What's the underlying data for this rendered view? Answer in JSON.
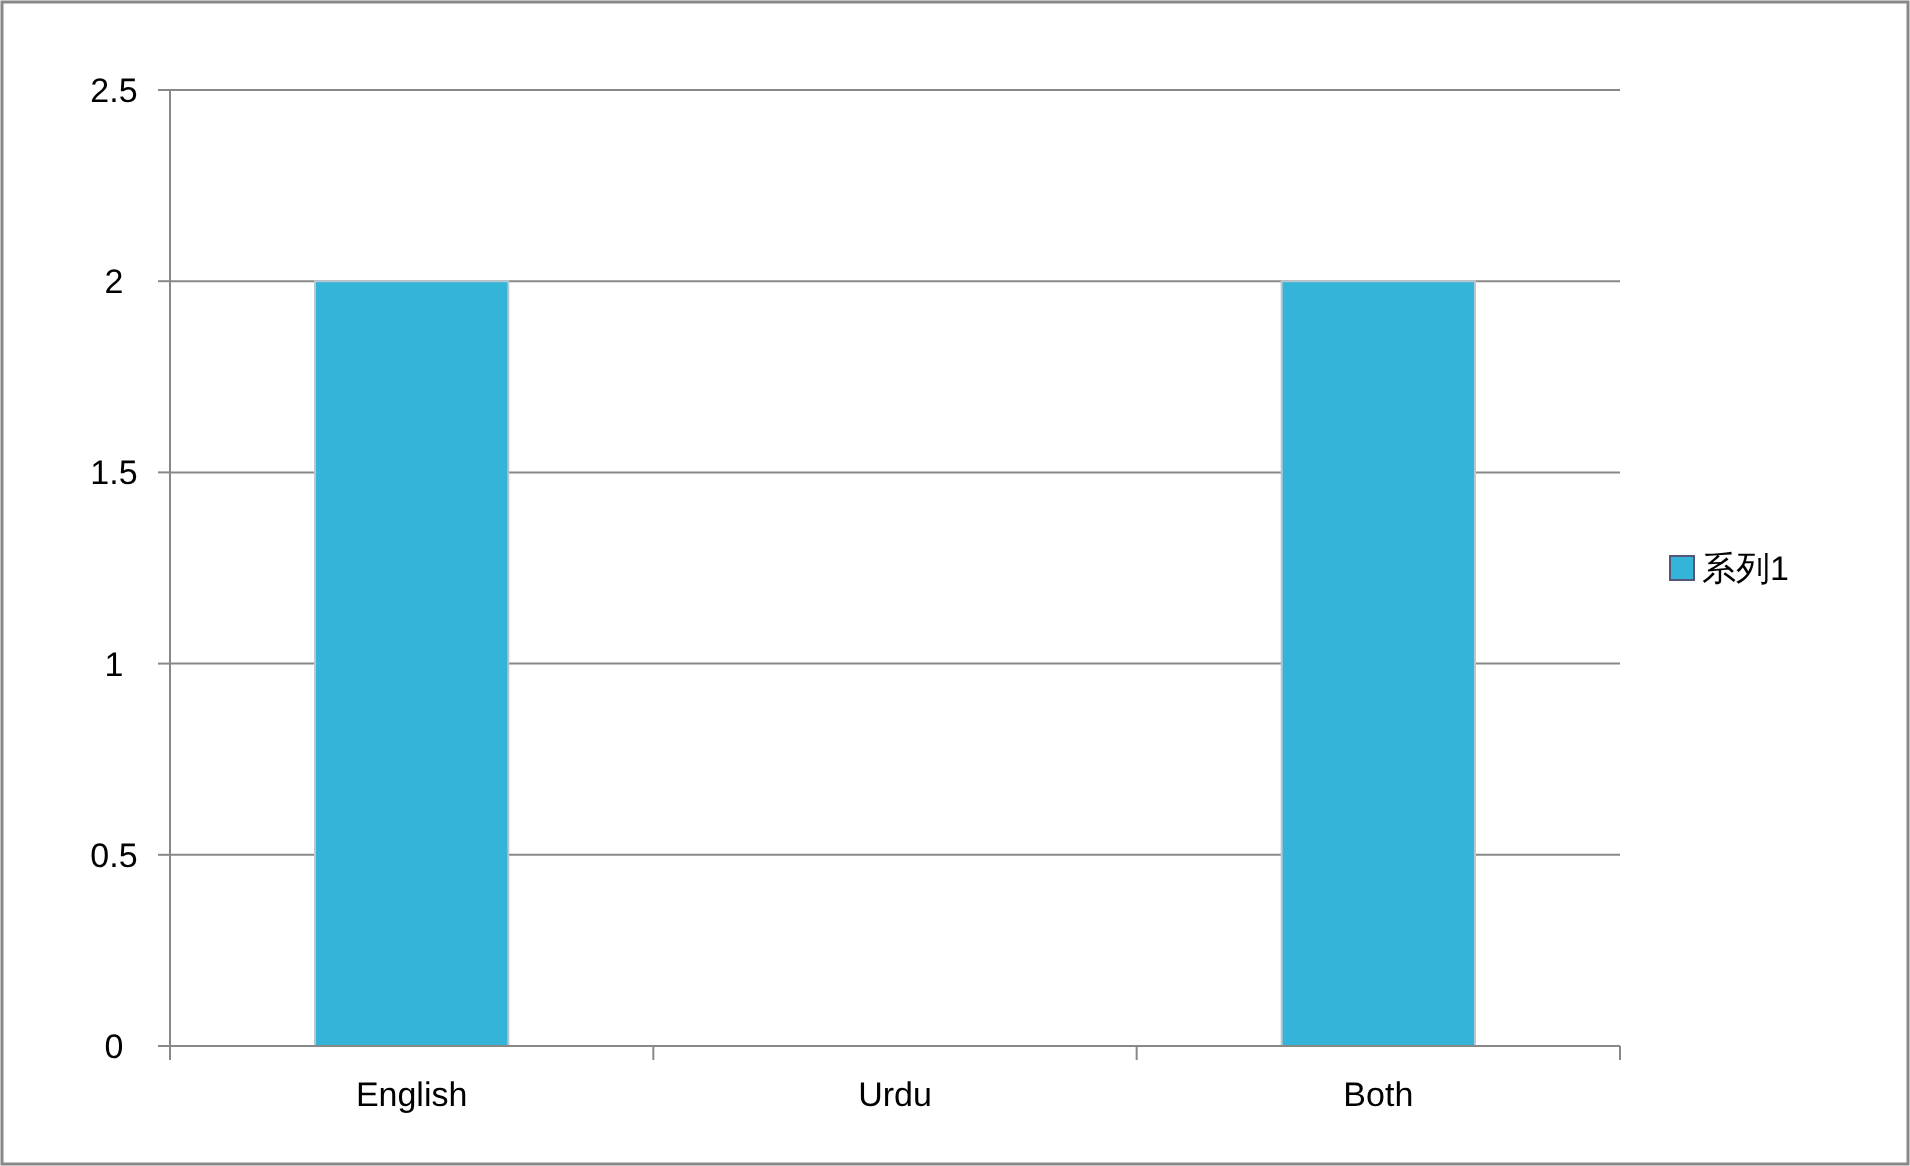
{
  "chart_data": {
    "type": "bar",
    "categories": [
      "English",
      "Urdu",
      "Both"
    ],
    "series": [
      {
        "name": "系列1",
        "color": "#33b4d8",
        "values": [
          2,
          0,
          2
        ]
      }
    ],
    "ylim": [
      0,
      2.5
    ],
    "yticks": [
      0,
      0.5,
      1,
      1.5,
      2,
      2.5
    ],
    "grid": "y",
    "legend": "right"
  }
}
